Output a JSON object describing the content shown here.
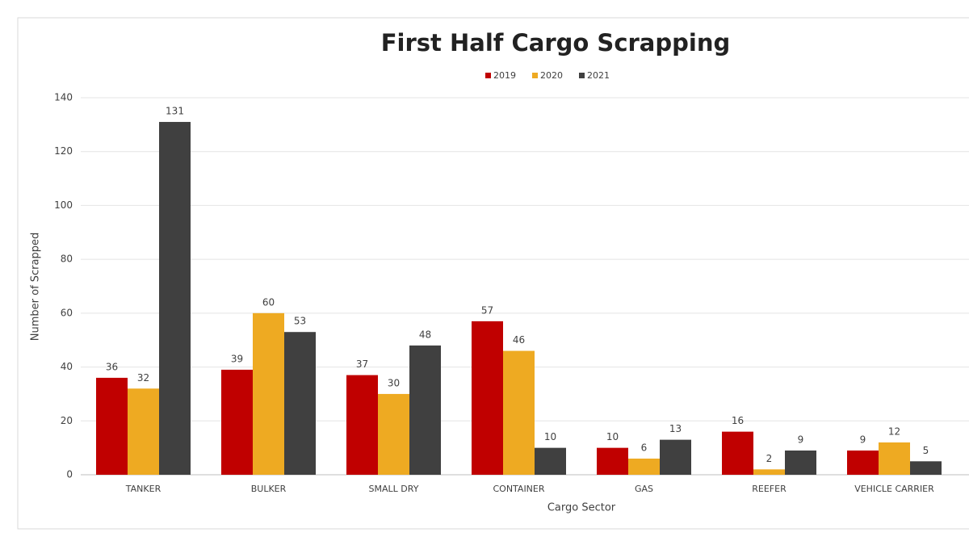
{
  "chart_data": {
    "type": "bar",
    "title": "First Half Cargo Scrapping",
    "x_label": "Cargo Sector",
    "y_label": "Number of Scrapped",
    "categories": [
      "TANKER",
      "BULKER",
      "SMALL DRY",
      "CONTAINER",
      "GAS",
      "REEFER",
      "VEHICLE CARRIER"
    ],
    "series": [
      {
        "name": "2019",
        "color": "#c00000",
        "values": [
          36,
          39,
          37,
          57,
          10,
          16,
          9
        ]
      },
      {
        "name": "2020",
        "color": "#eeaa22",
        "values": [
          32,
          60,
          30,
          46,
          6,
          2,
          12
        ]
      },
      {
        "name": "2021",
        "color": "#404040",
        "values": [
          131,
          53,
          48,
          10,
          13,
          9,
          5
        ]
      }
    ],
    "ylim": [
      0,
      140
    ],
    "yticks": [
      0,
      20,
      40,
      60,
      80,
      100,
      120,
      140
    ],
    "grid": true,
    "legend": "top"
  }
}
